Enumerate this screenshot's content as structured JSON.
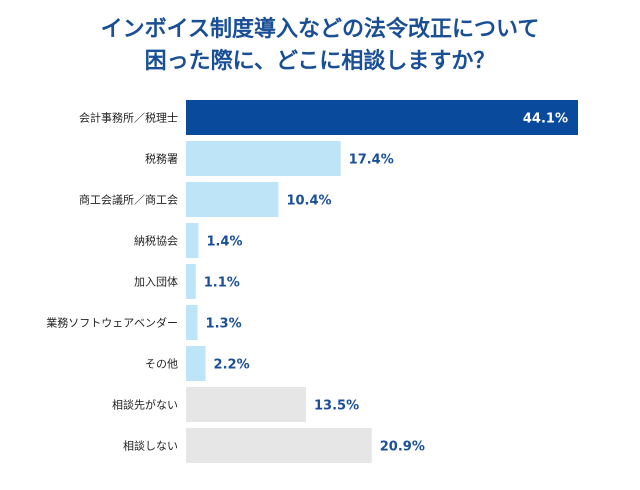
{
  "chart_data": {
    "type": "bar",
    "orientation": "horizontal",
    "title_lines": [
      "インボイス制度導入などの法令改正について",
      "困った際に、どこに相談しますか？"
    ],
    "categories": [
      "会計事務所／税理士",
      "税務署",
      "商工会議所／商工会",
      "納税協会",
      "加入団体",
      "業務ソフトウェアベンダー",
      "その他",
      "相談先がない",
      "相談しない"
    ],
    "values": [
      44.1,
      17.4,
      10.4,
      1.4,
      1.1,
      1.3,
      2.2,
      13.5,
      20.9
    ],
    "value_labels": [
      "44.1%",
      "17.4%",
      "10.4%",
      "1.4%",
      "1.1%",
      "1.3%",
      "2.2%",
      "13.5%",
      "20.9%"
    ],
    "unit": "%",
    "xlim": [
      0,
      44.1
    ],
    "grid": false,
    "legend": "none",
    "colors": {
      "highlight_bar": "#0a4a9c",
      "consult_bar": "#bde5f7",
      "no_consult_bar": "#e6e6e6",
      "label_dark": "#1a4f96",
      "label_on_bar": "#ffffff",
      "title": "#1a4f96"
    },
    "bar_color_keys": [
      "highlight_bar",
      "consult_bar",
      "consult_bar",
      "consult_bar",
      "consult_bar",
      "consult_bar",
      "consult_bar",
      "no_consult_bar",
      "no_consult_bar"
    ]
  }
}
